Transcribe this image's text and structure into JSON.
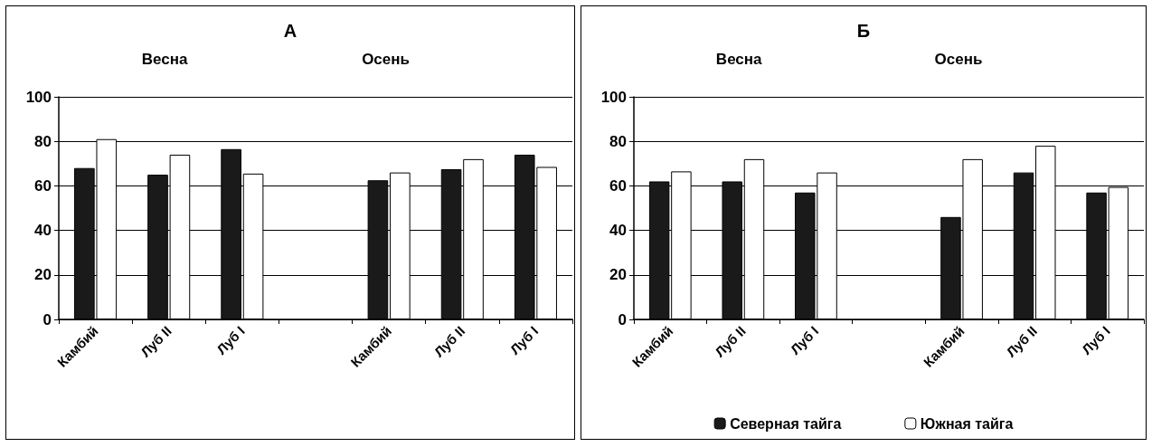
{
  "chart_data": [
    {
      "type": "bar",
      "title": "А",
      "annotations": [
        "Весна",
        "Осень"
      ],
      "categories": [
        "Камбий",
        "Луб II",
        "Луб I",
        null,
        "Камбий",
        "Луб II",
        "Луб I"
      ],
      "series": [
        {
          "color": "#1a1a1a",
          "values": [
            68,
            65,
            76.5,
            null,
            62.5,
            67.5,
            74
          ]
        },
        {
          "color": "#ffffff",
          "values": [
            81,
            74,
            65.5,
            null,
            66,
            72,
            68.5
          ]
        }
      ],
      "ylim": [
        0,
        100
      ],
      "yticks": [
        0,
        20,
        40,
        60,
        80,
        100
      ],
      "grid": "y",
      "legend": false
    },
    {
      "type": "bar",
      "title": "Б",
      "annotations": [
        "Весна",
        "Осень"
      ],
      "categories": [
        "Камбий",
        "Луб II",
        "Луб I",
        null,
        "Камбий",
        "Луб II",
        "Луб I"
      ],
      "series": [
        {
          "name": "Северная тайга",
          "color": "#1a1a1a",
          "values": [
            62,
            62,
            57,
            null,
            46,
            66,
            57
          ]
        },
        {
          "name": "Южная тайга",
          "color": "#ffffff",
          "values": [
            66.5,
            72,
            66,
            null,
            72,
            78,
            59.5
          ]
        }
      ],
      "ylim": [
        0,
        100
      ],
      "yticks": [
        0,
        20,
        40,
        60,
        80,
        100
      ],
      "grid": "y",
      "legend": "bottom"
    }
  ]
}
